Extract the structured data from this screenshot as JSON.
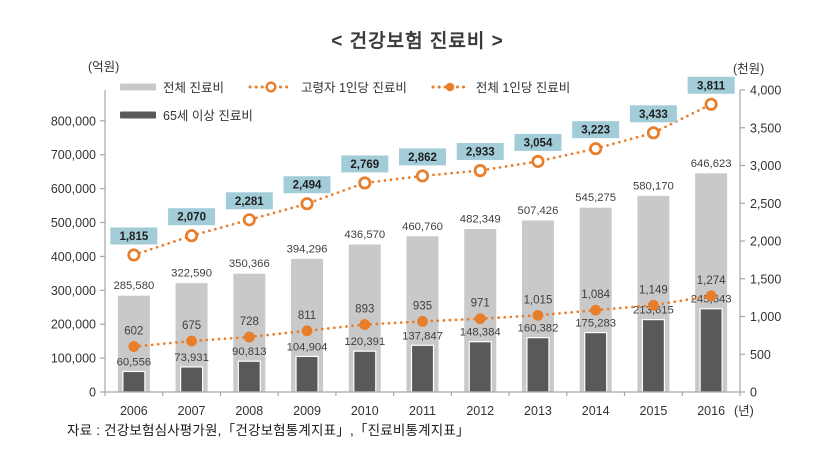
{
  "chart_data": {
    "type": "bar+line combo",
    "title": "< 건강보험 진료비 >",
    "categories": [
      2006,
      2007,
      2008,
      2009,
      2010,
      2011,
      2012,
      2013,
      2014,
      2015,
      2016
    ],
    "x_axis_unit": "(년)",
    "left_axis": {
      "unit_label": "(억원)",
      "min": 0,
      "tick_interval": 100000,
      "tick_top": 800000
    },
    "right_axis": {
      "unit_label": "(천원)",
      "min": 0,
      "max": 4000,
      "tick_interval": 500
    },
    "grid": false,
    "legend_position": "top-left",
    "series": [
      {
        "name": "전체 진료비",
        "type": "bar",
        "axis": "left",
        "color": "#c9c9c9",
        "values": [
          285580,
          322590,
          350366,
          394296,
          436570,
          460760,
          482349,
          507426,
          545275,
          580170,
          646623
        ]
      },
      {
        "name": "65세 이상 진료비",
        "type": "bar",
        "axis": "left",
        "color": "#595959",
        "values": [
          60556,
          73931,
          90813,
          104904,
          120391,
          137847,
          148384,
          160382,
          175283,
          213615,
          245643
        ]
      },
      {
        "name": "고령자 1인당 진료비",
        "type": "line",
        "line_style": "dotted",
        "marker": "open-circle",
        "axis": "right",
        "color": "#e87d2a",
        "label_background": "#a3ccd9",
        "values": [
          1815,
          2070,
          2281,
          2494,
          2769,
          2862,
          2933,
          3054,
          3223,
          3433,
          3811
        ]
      },
      {
        "name": "전체 1인당 진료비",
        "type": "line",
        "line_style": "dotted",
        "marker": "filled-circle",
        "axis": "right",
        "color": "#e87d2a",
        "values": [
          602,
          675,
          728,
          811,
          893,
          935,
          971,
          1015,
          1084,
          1149,
          1274
        ]
      }
    ],
    "source": "자료 : 건강보험심사평가원,「건강보험통계지표」,「진료비통계지표」",
    "axis_color": "#a6a6a6",
    "label_color": "#3f3f3f"
  }
}
